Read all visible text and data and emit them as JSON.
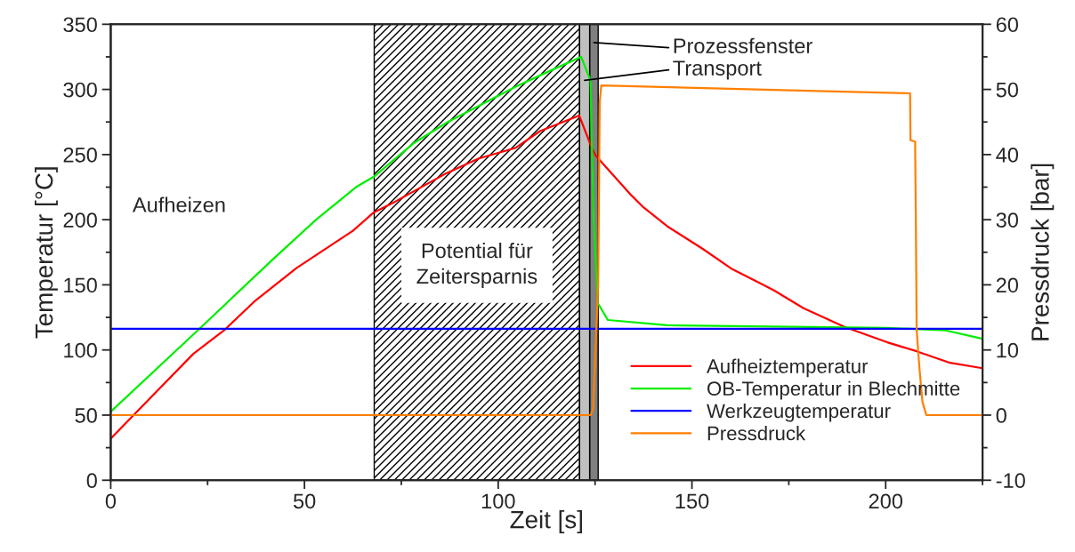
{
  "chart_data": {
    "type": "line",
    "xlabel": "Zeit [s]",
    "ylabel": "Temperatur [°C]",
    "y2label": "Pressdruck [bar]",
    "xlim": [
      0,
      225
    ],
    "xticks": [
      0,
      50,
      100,
      150,
      200
    ],
    "ylim": [
      0,
      350
    ],
    "yticks": [
      0,
      50,
      100,
      150,
      200,
      250,
      300,
      350
    ],
    "y2lim": [
      -10,
      60
    ],
    "y2ticks": [
      -10,
      0,
      10,
      20,
      30,
      40,
      50,
      60
    ],
    "legend": "bottom right",
    "grid": false,
    "annotations": [
      "Aufheizen"
    ],
    "bands": [
      {
        "axis": "x",
        "from": 68,
        "to": 121,
        "label": "Potential für\nZeitersparnis",
        "color": "#000000"
      },
      {
        "axis": "x",
        "from": 123.6,
        "to": 125.8,
        "label": "Prozessfenster",
        "color": "#808080"
      },
      {
        "axis": "x",
        "from": 121,
        "to": 123.6,
        "label": "Transport",
        "color": "#c0c0c0"
      }
    ],
    "series": [
      {
        "name": "Aufheiztemperatur",
        "color": "#ff0000",
        "x": [
          0,
          5.9,
          21.3,
          29.6,
          37,
          48,
          62.5,
          67.9,
          73.5,
          86.2,
          95,
          104.4,
          110.8,
          120.9,
          124.3,
          125.2,
          134.4,
          137.4,
          143.6,
          152.8,
          160.4,
          167.3,
          171.2,
          178.8,
          189.5,
          200.4,
          208,
          216.3,
          225
        ],
        "values": [
          32,
          50,
          97,
          116,
          137,
          163,
          191.5,
          205.6,
          214,
          235,
          247,
          255,
          268,
          280,
          254,
          249,
          218.6,
          209.7,
          195,
          177.6,
          162,
          151.6,
          145.7,
          132,
          117.5,
          105.9,
          99,
          90.4,
          86
        ]
      },
      {
        "name": "OB-Temperatur in Blechmitte",
        "color": "#00ee00",
        "x": [
          0,
          22.8,
          42,
          53,
          63.3,
          67.9,
          78.3,
          87,
          104.4,
          113.9,
          121.4,
          123.8,
          124.6,
          125.7,
          128.3,
          143.6,
          200,
          215.5,
          225
        ],
        "values": [
          52.6,
          116,
          170,
          200,
          225,
          233,
          259,
          275,
          302,
          315,
          325,
          307,
          202,
          136,
          123,
          119,
          117,
          115,
          108.6
        ]
      },
      {
        "name": "Werkzeugtemperatur",
        "color": "#0000ff",
        "x": [
          0,
          225
        ],
        "values": [
          116.3,
          116.3
        ]
      },
      {
        "name": "Pressdruck",
        "color": "#ff7f00",
        "axis": "y2",
        "x": [
          0,
          123.9,
          124.5,
          125.8,
          126.2,
          126.6,
          140,
          180,
          206.3,
          206.4,
          207.6,
          207.8,
          208,
          208.7,
          209.5,
          210.5,
          225
        ],
        "values": [
          0,
          0,
          1,
          20,
          48,
          50.6,
          50.4,
          49.8,
          49.4,
          42.2,
          42,
          28.9,
          13,
          7.3,
          2,
          0,
          0
        ]
      }
    ]
  }
}
